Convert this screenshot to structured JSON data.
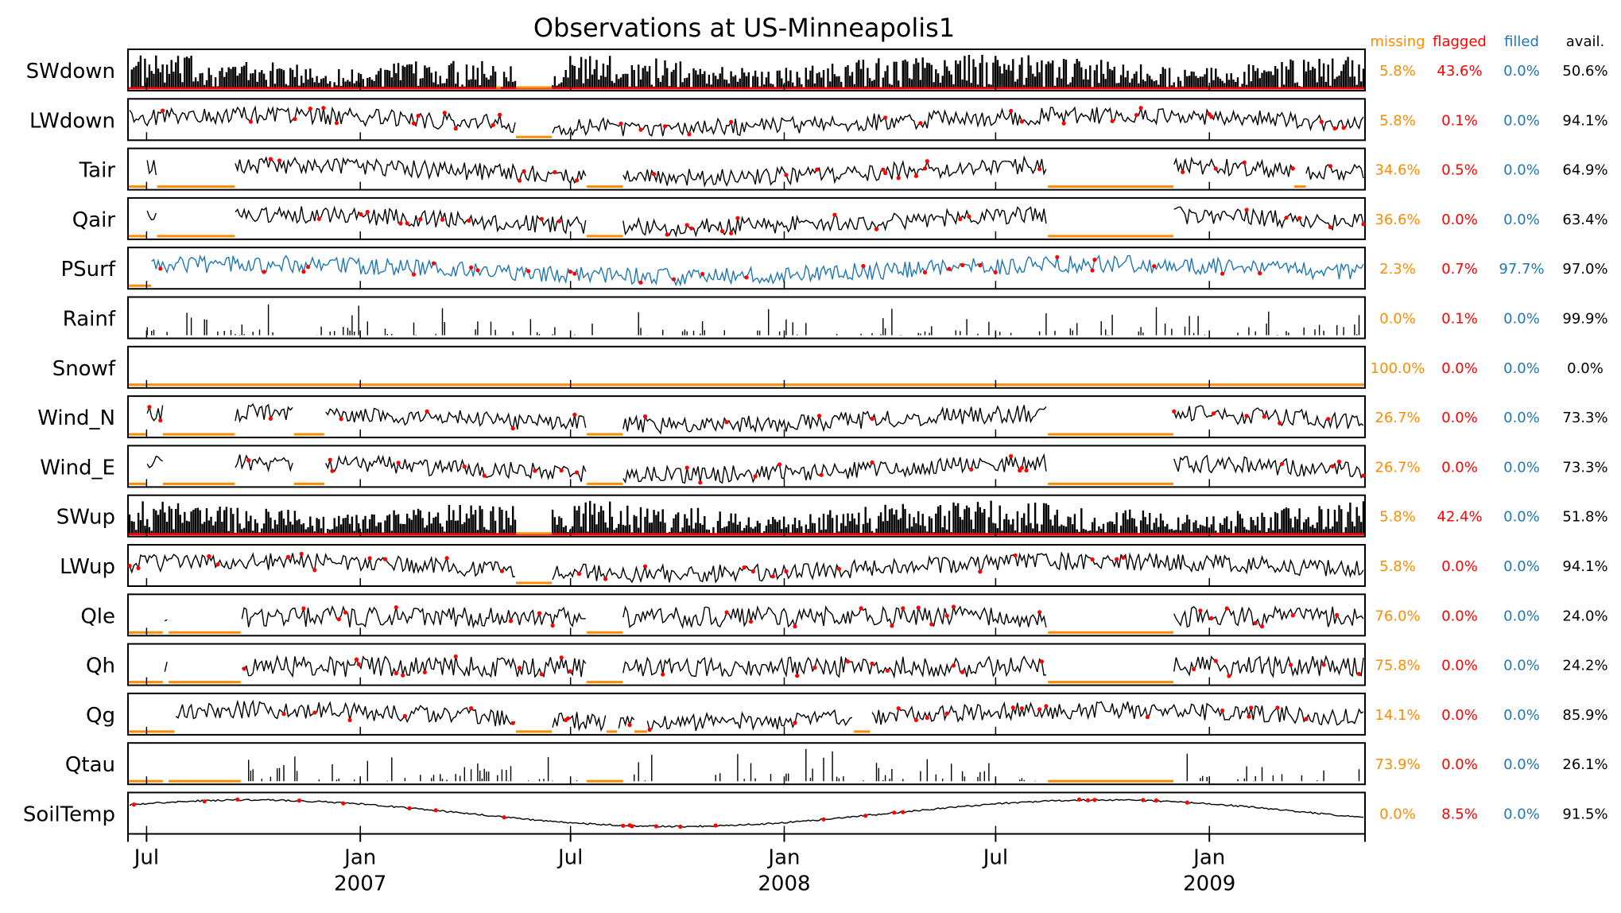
{
  "chart_data": {
    "type": "line",
    "title": "Observations at US-Minneapolis1",
    "stat_headers": {
      "missing": "missing",
      "flagged": "flagged",
      "filled": "filled",
      "avail": "avail."
    },
    "colors": {
      "missing": "#ff8c00",
      "flagged": "#ff0000",
      "filled": "#1f77b4",
      "avail": "#000000",
      "data": "#000000"
    },
    "x_axis": {
      "start": "2006-06-15",
      "end": "2009-05-15",
      "ticks": [
        {
          "date": "2006-07-01",
          "label": "Jul",
          "year": ""
        },
        {
          "date": "2007-01-01",
          "label": "Jan",
          "year": "2007"
        },
        {
          "date": "2007-07-01",
          "label": "Jul",
          "year": ""
        },
        {
          "date": "2008-01-01",
          "label": "Jan",
          "year": "2008"
        },
        {
          "date": "2008-07-01",
          "label": "Jul",
          "year": ""
        },
        {
          "date": "2009-01-01",
          "label": "Jan",
          "year": "2009"
        }
      ]
    },
    "series": [
      {
        "name": "SWdown",
        "missing": "5.8%",
        "flagged": "43.6%",
        "filled": "0.0%",
        "avail": "50.6%",
        "style": "spiky",
        "filled_line": false,
        "gaps": [
          [
            "2007-04-28",
            "2007-05-02"
          ],
          [
            "2007-05-15",
            "2007-06-15"
          ]
        ]
      },
      {
        "name": "LWdown",
        "missing": "5.8%",
        "flagged": "0.1%",
        "filled": "0.0%",
        "avail": "94.1%",
        "style": "noisy",
        "filled_line": false,
        "gaps": [
          [
            "2007-05-15",
            "2007-06-15"
          ]
        ]
      },
      {
        "name": "Tair",
        "missing": "34.6%",
        "flagged": "0.5%",
        "filled": "0.0%",
        "avail": "64.9%",
        "style": "noisy",
        "filled_line": false,
        "gaps": [
          [
            "2006-06-15",
            "2006-07-01"
          ],
          [
            "2006-07-10",
            "2006-09-15"
          ],
          [
            "2007-07-15",
            "2007-08-15"
          ],
          [
            "2008-08-15",
            "2008-12-01"
          ],
          [
            "2009-03-15",
            "2009-03-25"
          ]
        ]
      },
      {
        "name": "Qair",
        "missing": "36.6%",
        "flagged": "0.0%",
        "filled": "0.0%",
        "avail": "63.4%",
        "style": "noisy",
        "filled_line": false,
        "gaps": [
          [
            "2006-06-15",
            "2006-07-01"
          ],
          [
            "2006-07-10",
            "2006-09-15"
          ],
          [
            "2007-07-15",
            "2007-08-15"
          ],
          [
            "2008-08-15",
            "2008-12-01"
          ]
        ]
      },
      {
        "name": "PSurf",
        "missing": "2.3%",
        "flagged": "0.7%",
        "filled": "97.7%",
        "avail": "97.0%",
        "style": "noisy",
        "filled_line": true,
        "gaps": [
          [
            "2006-06-15",
            "2006-07-05"
          ]
        ]
      },
      {
        "name": "Rainf",
        "missing": "0.0%",
        "flagged": "0.1%",
        "filled": "0.0%",
        "avail": "99.9%",
        "style": "sparse",
        "filled_line": false,
        "gaps": []
      },
      {
        "name": "Snowf",
        "missing": "100.0%",
        "flagged": "0.0%",
        "filled": "0.0%",
        "avail": "0.0%",
        "style": "empty",
        "filled_line": false,
        "gaps": [
          [
            "2006-06-15",
            "2009-05-15"
          ]
        ]
      },
      {
        "name": "Wind_N",
        "missing": "26.7%",
        "flagged": "0.0%",
        "filled": "0.0%",
        "avail": "73.3%",
        "style": "noisy",
        "filled_line": false,
        "gaps": [
          [
            "2006-06-15",
            "2006-07-01"
          ],
          [
            "2006-07-15",
            "2006-09-15"
          ],
          [
            "2006-11-05",
            "2006-12-01"
          ],
          [
            "2007-07-15",
            "2007-08-15"
          ],
          [
            "2008-08-15",
            "2008-12-01"
          ]
        ]
      },
      {
        "name": "Wind_E",
        "missing": "26.7%",
        "flagged": "0.0%",
        "filled": "0.0%",
        "avail": "73.3%",
        "style": "noisy",
        "filled_line": false,
        "gaps": [
          [
            "2006-06-15",
            "2006-07-01"
          ],
          [
            "2006-07-15",
            "2006-09-15"
          ],
          [
            "2006-11-05",
            "2006-12-01"
          ],
          [
            "2007-07-15",
            "2007-08-15"
          ],
          [
            "2008-08-15",
            "2008-12-01"
          ]
        ]
      },
      {
        "name": "SWup",
        "missing": "5.8%",
        "flagged": "42.4%",
        "filled": "0.0%",
        "avail": "51.8%",
        "style": "spiky",
        "filled_line": false,
        "gaps": [
          [
            "2007-05-15",
            "2007-06-15"
          ]
        ]
      },
      {
        "name": "LWup",
        "missing": "5.8%",
        "flagged": "0.0%",
        "filled": "0.0%",
        "avail": "94.1%",
        "style": "noisy",
        "filled_line": false,
        "gaps": [
          [
            "2007-05-15",
            "2007-06-15"
          ]
        ]
      },
      {
        "name": "Qle",
        "missing": "76.0%",
        "flagged": "0.0%",
        "filled": "0.0%",
        "avail": "24.0%",
        "style": "sparse-noisy",
        "filled_line": false,
        "gaps": [
          [
            "2006-06-15",
            "2006-07-15"
          ],
          [
            "2006-07-20",
            "2006-09-20"
          ],
          [
            "2007-07-15",
            "2007-08-15"
          ],
          [
            "2008-08-15",
            "2008-12-01"
          ]
        ]
      },
      {
        "name": "Qh",
        "missing": "75.8%",
        "flagged": "0.0%",
        "filled": "0.0%",
        "avail": "24.2%",
        "style": "sparse-noisy",
        "filled_line": false,
        "gaps": [
          [
            "2006-06-15",
            "2006-07-15"
          ],
          [
            "2006-07-20",
            "2006-09-20"
          ],
          [
            "2007-07-15",
            "2007-08-15"
          ],
          [
            "2008-08-15",
            "2008-12-01"
          ]
        ]
      },
      {
        "name": "Qg",
        "missing": "14.1%",
        "flagged": "0.0%",
        "filled": "0.0%",
        "avail": "85.9%",
        "style": "noisy",
        "filled_line": false,
        "gaps": [
          [
            "2006-06-15",
            "2006-07-25"
          ],
          [
            "2007-05-15",
            "2007-06-15"
          ],
          [
            "2007-08-01",
            "2007-08-10"
          ],
          [
            "2007-08-25",
            "2007-09-05"
          ],
          [
            "2008-03-01",
            "2008-03-15"
          ]
        ]
      },
      {
        "name": "Qtau",
        "missing": "73.9%",
        "flagged": "0.0%",
        "filled": "0.0%",
        "avail": "26.1%",
        "style": "sparse",
        "filled_line": false,
        "gaps": [
          [
            "2006-06-15",
            "2006-07-15"
          ],
          [
            "2006-07-20",
            "2006-09-20"
          ],
          [
            "2007-07-15",
            "2007-08-15"
          ],
          [
            "2008-08-15",
            "2008-12-01"
          ]
        ]
      },
      {
        "name": "SoilTemp",
        "missing": "0.0%",
        "flagged": "8.5%",
        "filled": "0.0%",
        "avail": "91.5%",
        "style": "smooth",
        "filled_line": false,
        "gaps": []
      }
    ]
  }
}
